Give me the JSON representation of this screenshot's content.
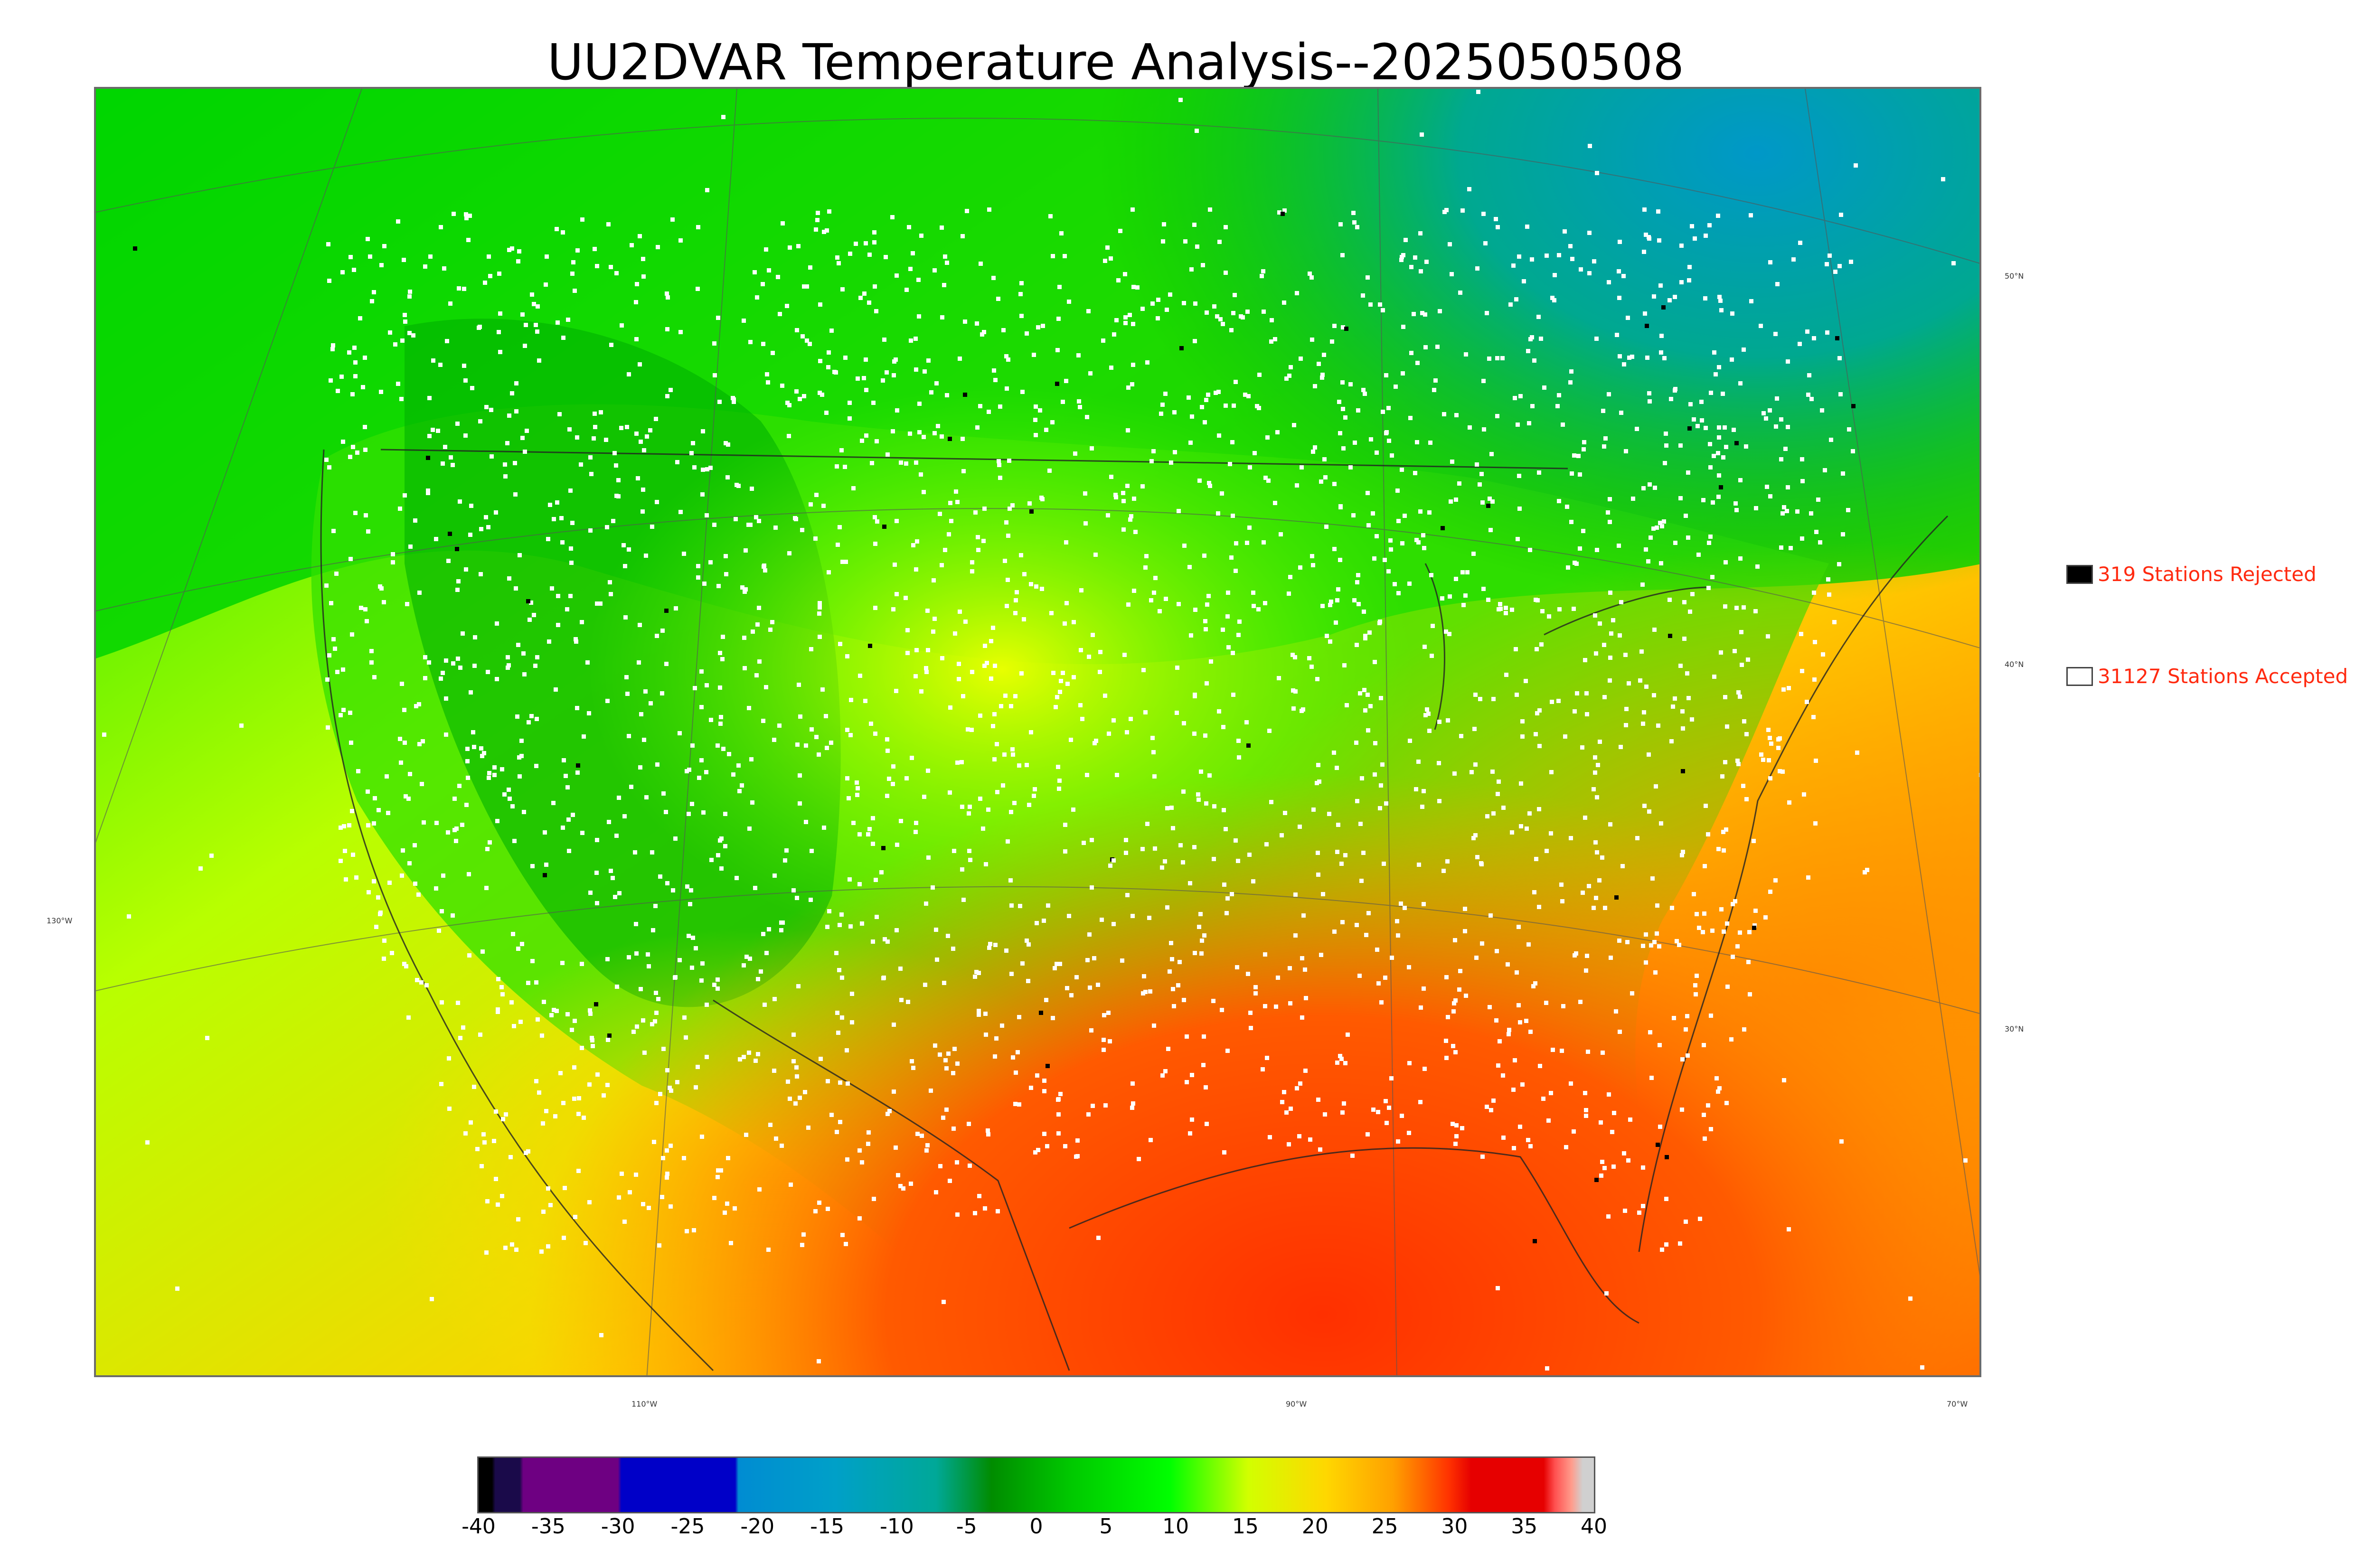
{
  "title": "UU2DVAR Temperature Analysis--2025050508",
  "legend": {
    "rejected_label": "319 Stations Rejected",
    "rejected_color": "#000000",
    "accepted_label": "31127 Stations Accepted",
    "accepted_color": "#ffffff"
  },
  "longitude_labels": [
    "130°W",
    "110°W",
    "90°W",
    "70°W"
  ],
  "latitude_labels": [
    "50°N",
    "40°N",
    "30°N"
  ],
  "colorbar": {
    "ticks": [
      "-40",
      "-35",
      "-30",
      "-25",
      "-20",
      "-15",
      "-10",
      "-5",
      "0",
      "5",
      "10",
      "15",
      "20",
      "25",
      "30",
      "35",
      "40"
    ],
    "range": [
      -40,
      40
    ],
    "colors": [
      "#000000",
      "#1a0a4a",
      "#6e0082",
      "#0000c8",
      "#008cd2",
      "#00a8b0",
      "#00b400",
      "#00ff00",
      "#d2ff00",
      "#ffd700",
      "#ff9a00",
      "#ff3200",
      "#e60000",
      "#ff8c8c",
      "#d0d0d0"
    ]
  },
  "map": {
    "field_colors": {
      "cold_northeast": "#00a8b0",
      "land_mid": "#00c000",
      "land_warm": "#ffd700",
      "ocean_warm": "#ff9a00",
      "gulf_hot": "#ff3200"
    },
    "station_colors": {
      "accepted": "#ffffff",
      "rejected": "#000000"
    }
  }
}
